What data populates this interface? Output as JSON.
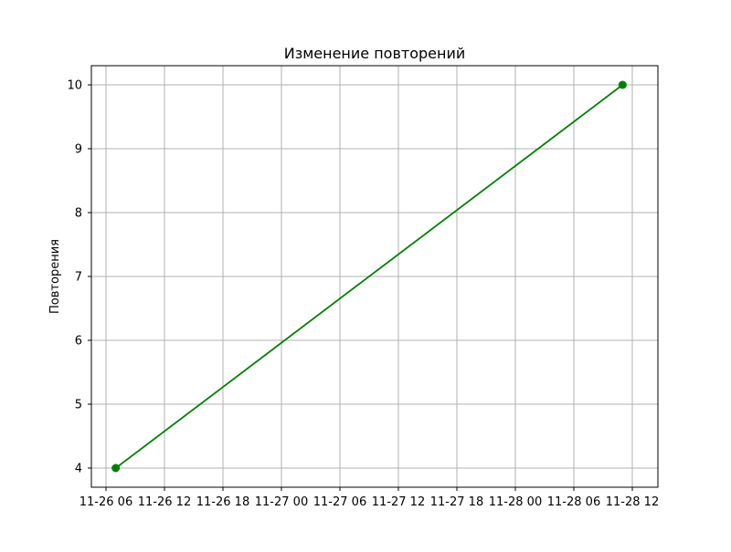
{
  "chart_data": {
    "type": "line",
    "title": "Изменение повторений",
    "xlabel": "",
    "ylabel": "Повторения",
    "x_ticks": [
      "11-26 06",
      "11-26 12",
      "11-26 18",
      "11-27 00",
      "11-27 06",
      "11-27 12",
      "11-27 18",
      "11-28 00",
      "11-28 06",
      "11-28 12"
    ],
    "y_ticks": [
      "4",
      "5",
      "6",
      "7",
      "8",
      "9",
      "10"
    ],
    "ylim": [
      3.7,
      10.3
    ],
    "grid": true,
    "series": [
      {
        "color": "#008000",
        "marker": "circle",
        "points": [
          {
            "x": "11-26 07",
            "y": 4
          },
          {
            "x": "11-28 11",
            "y": 10
          }
        ]
      }
    ]
  }
}
